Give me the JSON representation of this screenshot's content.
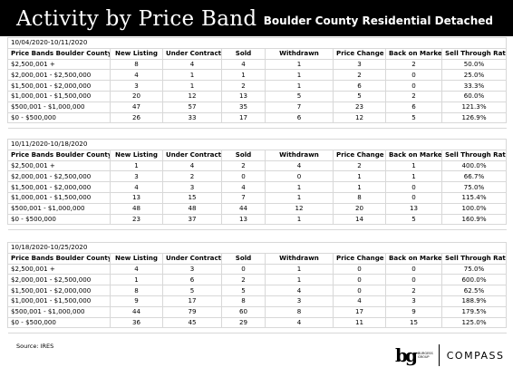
{
  "header": {
    "title": "Activity by Price Band",
    "subtitle": "Boulder County Residential Detached"
  },
  "columns": [
    "Price Bands Boulder County",
    "New Listing",
    "Under Contract",
    "Sold",
    "Withdrawn",
    "Price Change",
    "Back on Market",
    "Sell Through Rate"
  ],
  "sections": [
    {
      "date_range": "10/04/2020-10/11/2020",
      "rows": [
        [
          "$2,500,001 +",
          "8",
          "4",
          "4",
          "1",
          "3",
          "2",
          "50.0%"
        ],
        [
          "$2,000,001 - $2,500,000",
          "4",
          "1",
          "1",
          "1",
          "2",
          "0",
          "25.0%"
        ],
        [
          "$1,500,001 - $2,000,000",
          "3",
          "1",
          "2",
          "1",
          "6",
          "0",
          "33.3%"
        ],
        [
          "$1,000,001 - $1,500,000",
          "20",
          "12",
          "13",
          "5",
          "5",
          "2",
          "60.0%"
        ],
        [
          "$500,001 - $1,000,000",
          "47",
          "57",
          "35",
          "7",
          "23",
          "6",
          "121.3%"
        ],
        [
          "$0 - $500,000",
          "26",
          "33",
          "17",
          "6",
          "12",
          "5",
          "126.9%"
        ]
      ]
    },
    {
      "date_range": "10/11/2020-10/18/2020",
      "rows": [
        [
          "$2,500,001 +",
          "1",
          "4",
          "2",
          "4",
          "2",
          "1",
          "400.0%"
        ],
        [
          "$2,000,001 - $2,500,000",
          "3",
          "2",
          "0",
          "0",
          "1",
          "1",
          "66.7%"
        ],
        [
          "$1,500,001 - $2,000,000",
          "4",
          "3",
          "4",
          "1",
          "1",
          "0",
          "75.0%"
        ],
        [
          "$1,000,001 - $1,500,000",
          "13",
          "15",
          "7",
          "1",
          "8",
          "0",
          "115.4%"
        ],
        [
          "$500,001 - $1,000,000",
          "48",
          "48",
          "44",
          "12",
          "20",
          "13",
          "100.0%"
        ],
        [
          "$0 - $500,000",
          "23",
          "37",
          "13",
          "1",
          "14",
          "5",
          "160.9%"
        ]
      ]
    },
    {
      "date_range": "10/18/2020-10/25/2020",
      "rows": [
        [
          "$2,500,001 +",
          "4",
          "3",
          "0",
          "1",
          "0",
          "0",
          "75.0%"
        ],
        [
          "$2,000,001 - $2,500,000",
          "1",
          "6",
          "2",
          "1",
          "0",
          "0",
          "600.0%"
        ],
        [
          "$1,500,001 - $2,000,000",
          "8",
          "5",
          "5",
          "4",
          "0",
          "2",
          "62.5%"
        ],
        [
          "$1,000,001 - $1,500,000",
          "9",
          "17",
          "8",
          "3",
          "4",
          "3",
          "188.9%"
        ],
        [
          "$500,001 - $1,000,000",
          "44",
          "79",
          "60",
          "8",
          "17",
          "9",
          "179.5%"
        ],
        [
          "$0 - $500,000",
          "36",
          "45",
          "29",
          "4",
          "11",
          "15",
          "125.0%"
        ]
      ]
    }
  ],
  "footer": {
    "source": "Source: IRES",
    "logo_mark": "bg",
    "logo_words_1": "BURGESS",
    "logo_words_2": "GROUP",
    "compass": "COMPASS"
  }
}
